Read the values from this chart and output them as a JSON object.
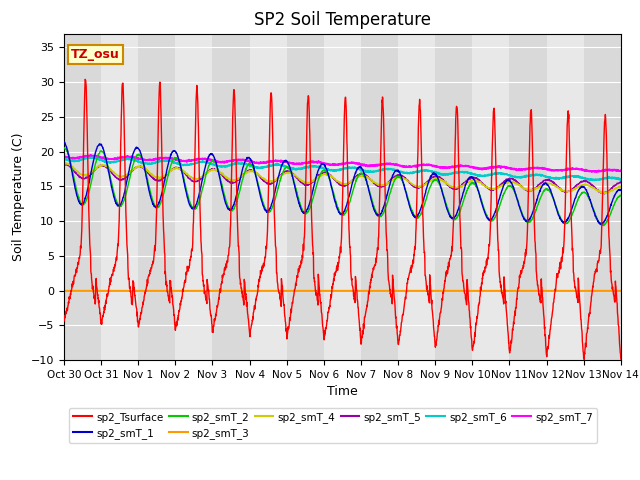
{
  "title": "SP2 Soil Temperature",
  "ylabel": "Soil Temperature (C)",
  "xlabel": "Time",
  "tz_label": "TZ_osu",
  "ylim": [
    -10,
    37
  ],
  "yticks": [
    -10,
    -5,
    0,
    5,
    10,
    15,
    20,
    25,
    30,
    35
  ],
  "xtick_labels": [
    "Oct 30",
    "Oct 31",
    "Nov 1",
    "Nov 2",
    "Nov 3",
    "Nov 4",
    "Nov 5",
    "Nov 6",
    "Nov 7",
    "Nov 8",
    "Nov 9",
    "Nov 10",
    "Nov 11",
    "Nov 12",
    "Nov 13",
    "Nov 14"
  ],
  "series_colors": {
    "sp2_Tsurface": "#ff0000",
    "sp2_smT_1": "#0000cc",
    "sp2_smT_2": "#00cc00",
    "sp2_smT_3": "#ff9900",
    "sp2_smT_4": "#cccc00",
    "sp2_smT_5": "#9900aa",
    "sp2_smT_6": "#00cccc",
    "sp2_smT_7": "#ff00ff"
  },
  "background_color": "#e8e8e8",
  "plot_bg_color": "#d8d8d8",
  "title_fontsize": 12,
  "axis_fontsize": 9,
  "tick_fontsize": 8
}
